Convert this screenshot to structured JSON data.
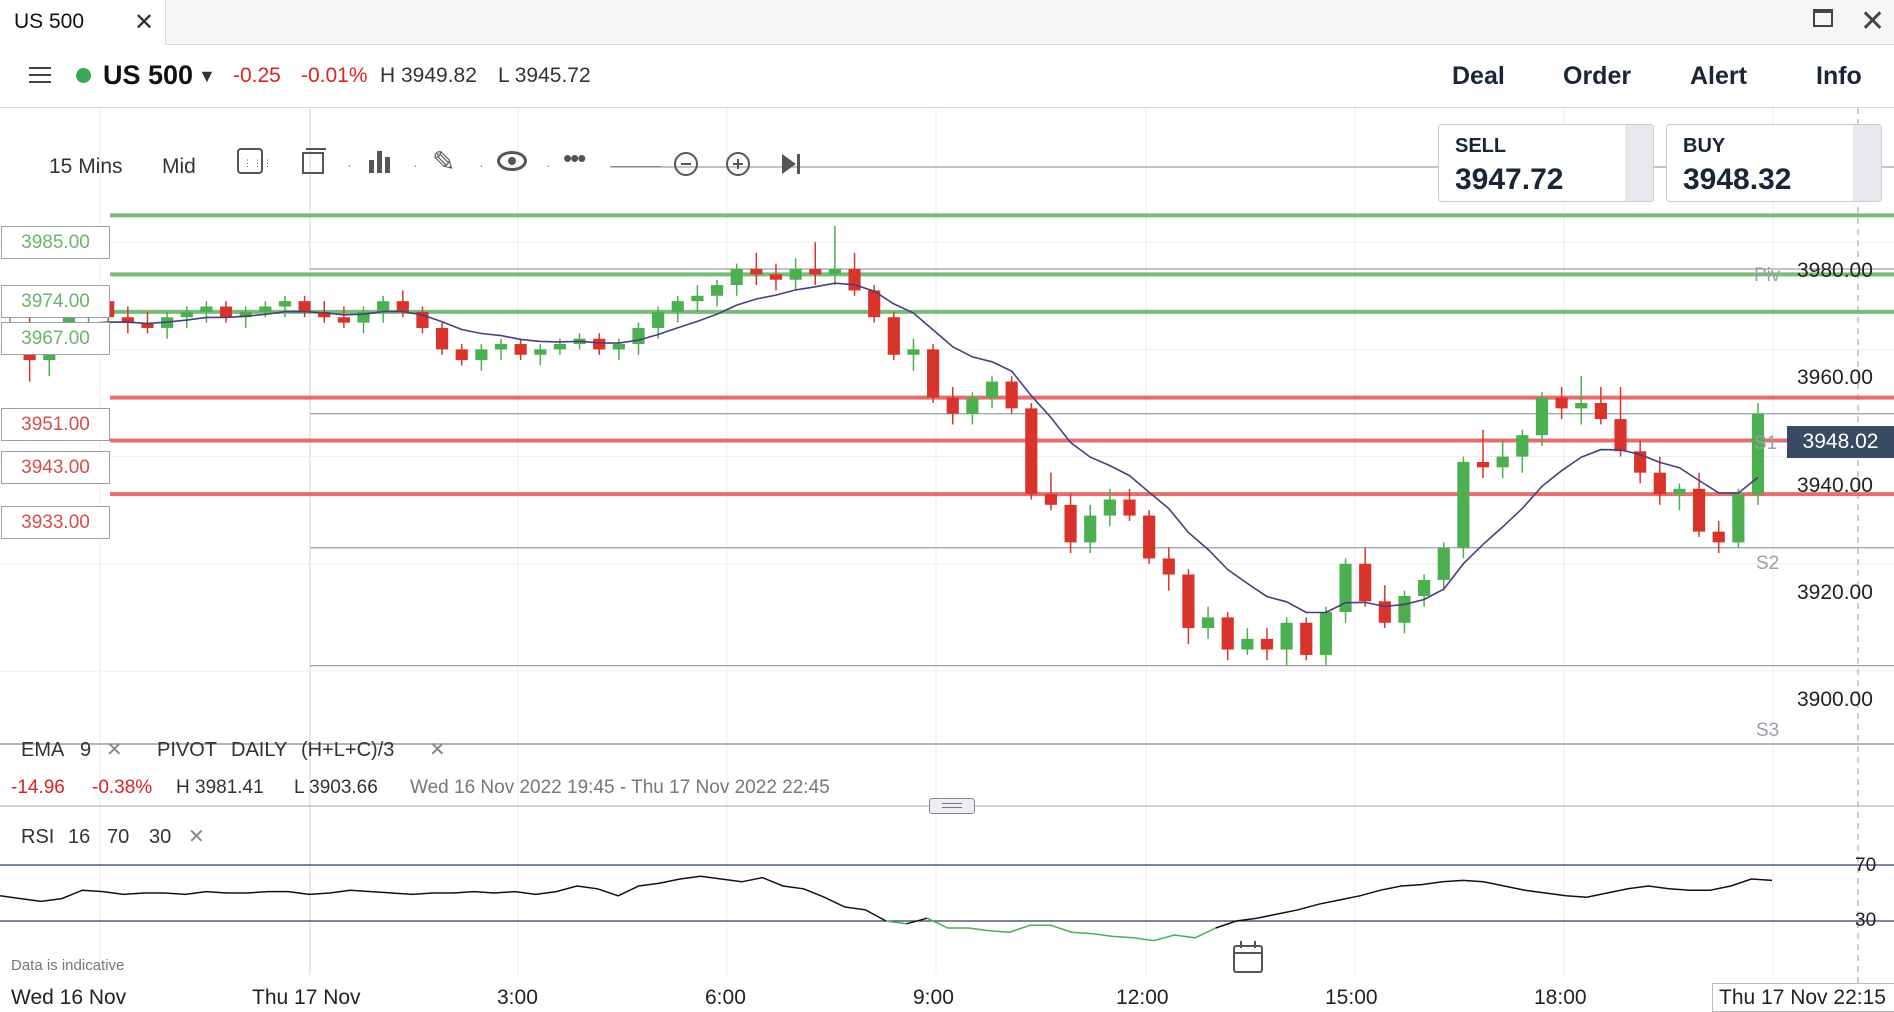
{
  "tab": {
    "title": "US 500",
    "close_icon": "close-icon"
  },
  "window": {
    "maximize_icon": "maximize-icon",
    "close_icon": "close-icon"
  },
  "header": {
    "menu_icon": "hamburger-icon",
    "market_status_color": "#3aa757",
    "instrument": "US 500",
    "change": "-0.25",
    "change_pct": "-0.01%",
    "high": "H 3949.82",
    "low": "L 3945.72",
    "nav": [
      "Deal",
      "Order",
      "Alert",
      "Info"
    ]
  },
  "toolbar": {
    "interval": "15 Mins",
    "price_type": "Mid",
    "icons": [
      "calendar-grid-icon",
      "chart-type-icon",
      "indicators-icon",
      "draw-icon",
      "visibility-icon",
      "more-icon",
      "zoom-out-icon",
      "zoom-in-icon",
      "jump-to-end-icon"
    ]
  },
  "deal": {
    "sell_label": "SELL",
    "sell_price": "3947.72",
    "buy_label": "BUY",
    "buy_price": "3948.32"
  },
  "levels": [
    {
      "price": "3985.00",
      "color": "green"
    },
    {
      "price": "3974.00",
      "color": "green"
    },
    {
      "price": "3967.00",
      "color": "green"
    },
    {
      "price": "3951.00",
      "color": "red"
    },
    {
      "price": "3943.00",
      "color": "red"
    },
    {
      "price": "3933.00",
      "color": "red"
    }
  ],
  "pivot_labels": [
    "Piv",
    "S1",
    "S2",
    "S3"
  ],
  "current_price": "3948.02",
  "indicators": {
    "ema_label": "EMA",
    "ema_period": "9",
    "pivot_label": "PIVOT",
    "pivot_period": "DAILY",
    "pivot_formula": "(H+L+C)/3"
  },
  "summary": {
    "change": "-14.96",
    "change_pct": "-0.38%",
    "high": "H 3981.41",
    "low": "L 3903.66",
    "range": "Wed 16 Nov 2022 19:45 - Thu 17 Nov 2022 22:45"
  },
  "rsi": {
    "label": "RSI",
    "period": "16",
    "upper": "70",
    "lower": "30"
  },
  "disclaimer": "Data is indicative",
  "x_labels": [
    "Wed 16 Nov",
    "Thu 17 Nov",
    "3:00",
    "6:00",
    "9:00",
    "12:00",
    "15:00",
    "18:00",
    "Thu 17 Nov 22:15"
  ],
  "colors": {
    "up": "#4caf50",
    "down": "#d9342b",
    "ema": "#4a3f7a",
    "support": "#6bb46a",
    "resistance": "#e06060",
    "price_tag": "#3a4a63"
  },
  "chart_data": {
    "type": "candlestick",
    "title": "US 500",
    "interval": "15 Mins",
    "y_ticks": [
      3900,
      3920,
      3940,
      3960,
      3980
    ],
    "y_tick_labels": [
      "3900.00",
      "3920.00",
      "3940.00",
      "3960.00",
      "3980.00"
    ],
    "ylim": [
      3893,
      3992
    ],
    "x_range": "Wed 16 Nov 2022 19:45 - Thu 17 Nov 2022 22:45",
    "horizontal_levels": [
      3985,
      3974,
      3967,
      3951,
      3943,
      3933
    ],
    "pivot_levels": {
      "Piv": 3975,
      "S1": 3948,
      "S2": 3923,
      "S3": 3901
    },
    "candles": [
      [
        3963,
        3968,
        3960,
        3965
      ],
      [
        3965,
        3969,
        3954,
        3958
      ],
      [
        3958,
        3964,
        3955,
        3962
      ],
      [
        3962,
        3968,
        3959,
        3966
      ],
      [
        3966,
        3971,
        3963,
        3969
      ],
      [
        3969,
        3970,
        3965,
        3966
      ],
      [
        3966,
        3968,
        3963,
        3965
      ],
      [
        3965,
        3967,
        3963,
        3964
      ],
      [
        3964,
        3967,
        3962,
        3966
      ],
      [
        3966,
        3968,
        3964,
        3967
      ],
      [
        3967,
        3969,
        3965,
        3968
      ],
      [
        3968,
        3969,
        3965,
        3966
      ],
      [
        3966,
        3968,
        3964,
        3967
      ],
      [
        3967,
        3969,
        3966,
        3968
      ],
      [
        3968,
        3970,
        3966,
        3969
      ],
      [
        3969,
        3970,
        3966,
        3967
      ],
      [
        3967,
        3969,
        3965,
        3966
      ],
      [
        3966,
        3968,
        3964,
        3965
      ],
      [
        3965,
        3968,
        3963,
        3967
      ],
      [
        3967,
        3970,
        3965,
        3969
      ],
      [
        3969,
        3971,
        3966,
        3967
      ],
      [
        3967,
        3968,
        3963,
        3964
      ],
      [
        3964,
        3965,
        3959,
        3960
      ],
      [
        3960,
        3961,
        3957,
        3958
      ],
      [
        3958,
        3961,
        3956,
        3960
      ],
      [
        3960,
        3962,
        3958,
        3961
      ],
      [
        3961,
        3962,
        3958,
        3959
      ],
      [
        3959,
        3961,
        3957,
        3960
      ],
      [
        3960,
        3962,
        3959,
        3961
      ],
      [
        3961,
        3963,
        3960,
        3962
      ],
      [
        3962,
        3963,
        3959,
        3960
      ],
      [
        3960,
        3962,
        3958,
        3961
      ],
      [
        3961,
        3965,
        3959,
        3964
      ],
      [
        3964,
        3968,
        3962,
        3967
      ],
      [
        3967,
        3970,
        3965,
        3969
      ],
      [
        3969,
        3972,
        3967,
        3970
      ],
      [
        3970,
        3973,
        3968,
        3972
      ],
      [
        3972,
        3976,
        3970,
        3975
      ],
      [
        3975,
        3978,
        3972,
        3974
      ],
      [
        3974,
        3976,
        3971,
        3973
      ],
      [
        3973,
        3977,
        3971,
        3975
      ],
      [
        3975,
        3980,
        3972,
        3974
      ],
      [
        3974,
        3983,
        3972,
        3975
      ],
      [
        3975,
        3978,
        3970,
        3971
      ],
      [
        3971,
        3972,
        3965,
        3966
      ],
      [
        3966,
        3967,
        3958,
        3959
      ],
      [
        3959,
        3962,
        3956,
        3960
      ],
      [
        3960,
        3961,
        3950,
        3951
      ],
      [
        3951,
        3953,
        3946,
        3948
      ],
      [
        3948,
        3952,
        3946,
        3951
      ],
      [
        3951,
        3955,
        3949,
        3954
      ],
      [
        3954,
        3955,
        3948,
        3949
      ],
      [
        3949,
        3950,
        3932,
        3933
      ],
      [
        3933,
        3937,
        3930,
        3931
      ],
      [
        3931,
        3933,
        3922,
        3924
      ],
      [
        3924,
        3931,
        3922,
        3929
      ],
      [
        3929,
        3934,
        3927,
        3932
      ],
      [
        3932,
        3934,
        3928,
        3929
      ],
      [
        3929,
        3930,
        3920,
        3921
      ],
      [
        3921,
        3923,
        3915,
        3918
      ],
      [
        3918,
        3919,
        3905,
        3908
      ],
      [
        3908,
        3912,
        3906,
        3910
      ],
      [
        3910,
        3911,
        3902,
        3904
      ],
      [
        3904,
        3908,
        3903,
        3906
      ],
      [
        3906,
        3908,
        3902,
        3904
      ],
      [
        3904,
        3910,
        3901,
        3909
      ],
      [
        3909,
        3910,
        3902,
        3903
      ],
      [
        3903,
        3912,
        3901,
        3911
      ],
      [
        3911,
        3921,
        3909,
        3920
      ],
      [
        3920,
        3923,
        3912,
        3913
      ],
      [
        3913,
        3916,
        3908,
        3909
      ],
      [
        3909,
        3915,
        3907,
        3914
      ],
      [
        3914,
        3918,
        3912,
        3917
      ],
      [
        3917,
        3924,
        3915,
        3923
      ],
      [
        3923,
        3940,
        3921,
        3939
      ],
      [
        3939,
        3945,
        3936,
        3938
      ],
      [
        3938,
        3943,
        3936,
        3940
      ],
      [
        3940,
        3945,
        3937,
        3944
      ],
      [
        3944,
        3952,
        3942,
        3951
      ],
      [
        3951,
        3953,
        3947,
        3949
      ],
      [
        3949,
        3955,
        3946,
        3950
      ],
      [
        3950,
        3953,
        3946,
        3947
      ],
      [
        3947,
        3953,
        3940,
        3941
      ],
      [
        3941,
        3943,
        3935,
        3937
      ],
      [
        3937,
        3940,
        3931,
        3933
      ],
      [
        3933,
        3935,
        3930,
        3934
      ],
      [
        3934,
        3937,
        3925,
        3926
      ],
      [
        3926,
        3928,
        3922,
        3924
      ],
      [
        3924,
        3934,
        3923,
        3933
      ],
      [
        3933,
        3950,
        3931,
        3948
      ]
    ],
    "ema_period": 9,
    "rsi": {
      "period": 16,
      "upper": 70,
      "lower": 30,
      "values": [
        48,
        46,
        44,
        46,
        52,
        51,
        49,
        50,
        50,
        49,
        51,
        50,
        50,
        51,
        51,
        49,
        50,
        52,
        51,
        50,
        49,
        50,
        50,
        51,
        50,
        51,
        49,
        51,
        55,
        53,
        48,
        55,
        57,
        60,
        62,
        60,
        58,
        61,
        55,
        53,
        47,
        40,
        38,
        30,
        28,
        32,
        25,
        25,
        23,
        22,
        27,
        27,
        22,
        21,
        19,
        18,
        16,
        20,
        18,
        25,
        30,
        32,
        35,
        38,
        42,
        45,
        48,
        52,
        55,
        56,
        58,
        59,
        58,
        55,
        52,
        50,
        48,
        47,
        50,
        53,
        55,
        53,
        52,
        52,
        55,
        60,
        59
      ]
    }
  }
}
